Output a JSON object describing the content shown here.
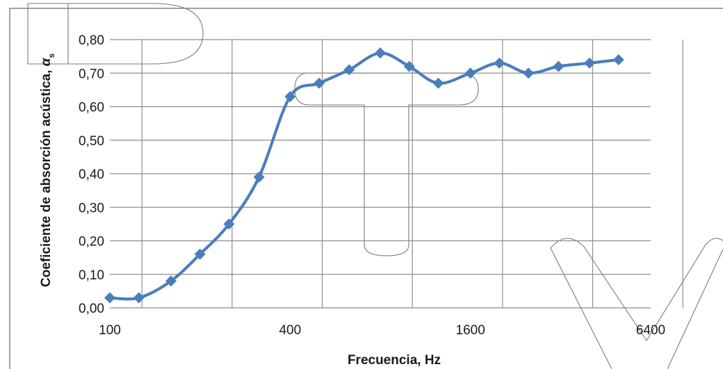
{
  "chart_data": {
    "type": "line",
    "title": "",
    "xlabel": "Frecuencia, Hz",
    "ylabel_main": "Coeficiente de absorción acústica, ",
    "ylabel_symbol": "α",
    "ylabel_subscript": "s",
    "x_scale": "log2",
    "xlim": [
      100,
      6400
    ],
    "x_ticks": [
      "100",
      "400",
      "1600",
      "6400"
    ],
    "ylim": [
      0.0,
      0.8
    ],
    "y_ticks": [
      "0,00",
      "0,10",
      "0,20",
      "0,30",
      "0,40",
      "0,50",
      "0,60",
      "0,70",
      "0,80"
    ],
    "grid": true,
    "legend": "none",
    "marker": "diamond",
    "smoothed": true,
    "color": "#4a7ebb",
    "series": [
      {
        "x": [
          100,
          125,
          160,
          200,
          250,
          315,
          400,
          500,
          630,
          800,
          1000,
          1250,
          1600,
          2000,
          2500,
          3150,
          4000,
          5000
        ],
        "y": [
          0.03,
          0.03,
          0.08,
          0.16,
          0.25,
          0.39,
          0.63,
          0.67,
          0.71,
          0.76,
          0.72,
          0.67,
          0.7,
          0.73,
          0.7,
          0.72,
          0.73,
          0.74
        ]
      }
    ]
  }
}
